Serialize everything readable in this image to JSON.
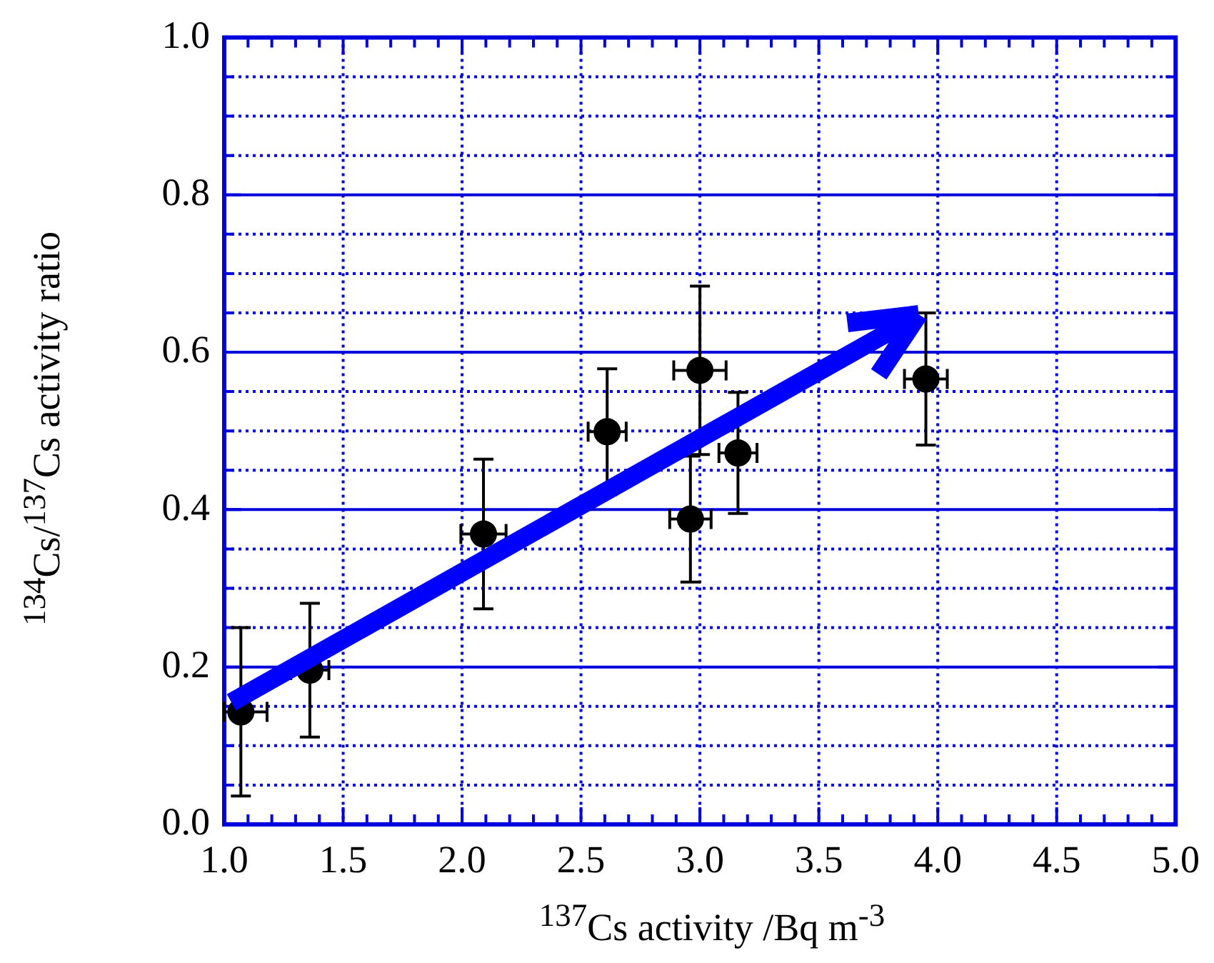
{
  "chart_data": {
    "type": "scatter",
    "xlabel": "$^{137}$Cs activity /Bq m$^{-3}$",
    "ylabel": "$^{134}$Cs/$^{137}$Cs activity ratio",
    "series": [
      {
        "color": "#000000",
        "x": [
          1.07,
          1.36,
          2.09,
          2.61,
          3.0,
          2.96,
          3.16,
          3.95
        ],
        "values": [
          0.143,
          0.196,
          0.369,
          0.499,
          0.577,
          0.388,
          0.472,
          0.566
        ],
        "errors": [
          0.107,
          0.085,
          0.095,
          0.08,
          0.107,
          0.08,
          0.077,
          0.084
        ],
        "xerrors": [
          [
            1.0,
            1.18
          ],
          0.08,
          0.095,
          0.08,
          0.11,
          0.087,
          0.08,
          0.09
        ]
      }
    ],
    "marker": "circle",
    "grid": true,
    "legend": false,
    "xlim": [
      1.0,
      5.0
    ],
    "xticks": [
      {
        "value": 1.0,
        "label": "1.0"
      },
      {
        "value": 1.1,
        "label": null
      },
      {
        "value": 1.2,
        "label": null
      },
      {
        "value": 1.3,
        "label": null
      },
      {
        "value": 1.4,
        "label": null
      },
      {
        "value": 1.5,
        "label": "1.5"
      },
      {
        "value": 1.6,
        "label": null
      },
      {
        "value": 1.7,
        "label": null
      },
      {
        "value": 1.8,
        "label": null
      },
      {
        "value": 1.9,
        "label": null
      },
      {
        "value": 2.0,
        "label": "2.0"
      },
      {
        "value": 2.1,
        "label": null
      },
      {
        "value": 2.2,
        "label": null
      },
      {
        "value": 2.3,
        "label": null
      },
      {
        "value": 2.4,
        "label": null
      },
      {
        "value": 2.5,
        "label": "2.5"
      },
      {
        "value": 2.6,
        "label": null
      },
      {
        "value": 2.7,
        "label": null
      },
      {
        "value": 2.8,
        "label": null
      },
      {
        "value": 2.9,
        "label": null
      },
      {
        "value": 3.0,
        "label": "3.0"
      },
      {
        "value": 3.1,
        "label": null
      },
      {
        "value": 3.2,
        "label": null
      },
      {
        "value": 3.3,
        "label": null
      },
      {
        "value": 3.4,
        "label": null
      },
      {
        "value": 3.5,
        "label": "3.5"
      },
      {
        "value": 3.6,
        "label": null
      },
      {
        "value": 3.7,
        "label": null
      },
      {
        "value": 3.8,
        "label": null
      },
      {
        "value": 3.9,
        "label": null
      },
      {
        "value": 4.0,
        "label": "4.0"
      },
      {
        "value": 4.1,
        "label": null
      },
      {
        "value": 4.2,
        "label": null
      },
      {
        "value": 4.3,
        "label": null
      },
      {
        "value": 4.4,
        "label": null
      },
      {
        "value": 4.5,
        "label": "4.5"
      },
      {
        "value": 4.6,
        "label": null
      },
      {
        "value": 4.7,
        "label": null
      },
      {
        "value": 4.8,
        "label": null
      },
      {
        "value": 4.9,
        "label": null
      },
      {
        "value": 5.0,
        "label": "5.0"
      }
    ],
    "ylim": [
      0.0,
      1.0
    ],
    "yticks": [
      {
        "value": 0.0,
        "label": "0.0"
      },
      {
        "value": 0.05,
        "label": null
      },
      {
        "value": 0.1,
        "label": null
      },
      {
        "value": 0.15,
        "label": null
      },
      {
        "value": 0.2,
        "label": "0.2"
      },
      {
        "value": 0.25,
        "label": null
      },
      {
        "value": 0.3,
        "label": null
      },
      {
        "value": 0.35,
        "label": null
      },
      {
        "value": 0.4,
        "label": "0.4"
      },
      {
        "value": 0.45,
        "label": null
      },
      {
        "value": 0.5,
        "label": null
      },
      {
        "value": 0.55,
        "label": null
      },
      {
        "value": 0.6,
        "label": "0.6"
      },
      {
        "value": 0.65,
        "label": null
      },
      {
        "value": 0.7,
        "label": null
      },
      {
        "value": 0.75,
        "label": null
      },
      {
        "value": 0.8,
        "label": "0.8"
      },
      {
        "value": 0.85,
        "label": null
      },
      {
        "value": 0.9,
        "label": null
      },
      {
        "value": 0.95,
        "label": null
      },
      {
        "value": 1.0,
        "label": "1.0"
      }
    ]
  }
}
